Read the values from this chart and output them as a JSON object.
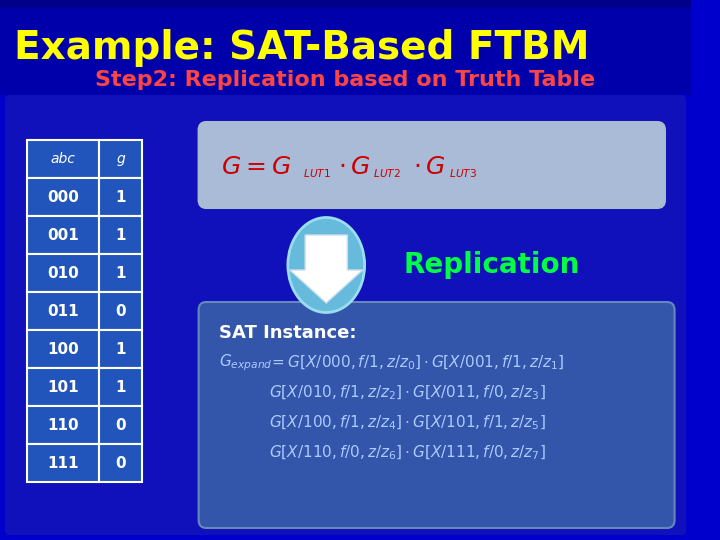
{
  "title": "Example: SAT-Based FTBM",
  "subtitle": "Step2: Replication based on Truth Table",
  "title_color": "#FFFF00",
  "subtitle_color": "#FF4444",
  "bg_color": "#0000CC",
  "header_bg": "#1A1A8C",
  "table_headers": [
    "abc",
    "g"
  ],
  "table_rows": [
    [
      "000",
      "1"
    ],
    [
      "001",
      "1"
    ],
    [
      "010",
      "1"
    ],
    [
      "011",
      "0"
    ],
    [
      "100",
      "1"
    ],
    [
      "101",
      "1"
    ],
    [
      "110",
      "0"
    ],
    [
      "111",
      "0"
    ]
  ],
  "formula_box_color": "#B0C8E8",
  "sat_box_color": "#5577CC",
  "replication_color": "#00FF44",
  "arrow_color": "#88CCEE",
  "arrow_white": "#FFFFFF"
}
